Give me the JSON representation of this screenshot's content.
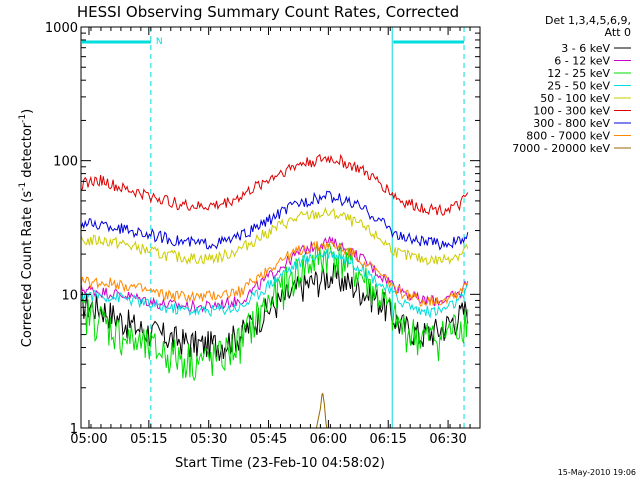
{
  "chart_data": {
    "type": "line",
    "title": "HESSI Observing Summary Count Rates, Corrected",
    "xlabel": "Start Time (23-Feb-10 04:58:02)",
    "ylabel": "Corrected Count Rate (s⁻¹ detector⁻¹)",
    "ylabel_main": "Corrected Count Rate (s",
    "ylabel_sup1": "-1",
    "ylabel_mid": " detector",
    "ylabel_sup2": "-1",
    "ylabel_end": ")",
    "x_axis_units": "minutes since 04:58:02",
    "xlim": [
      0,
      100
    ],
    "ylim": [
      1,
      1000
    ],
    "yscale": "log",
    "x_ticks": [
      {
        "value": 2,
        "label": "05:00"
      },
      {
        "value": 17,
        "label": "05:15"
      },
      {
        "value": 32,
        "label": "05:30"
      },
      {
        "value": 47,
        "label": "05:45"
      },
      {
        "value": 62,
        "label": "06:00"
      },
      {
        "value": 77,
        "label": "06:15"
      },
      {
        "value": 92,
        "label": "06:30"
      }
    ],
    "y_ticks": [
      {
        "value": 1,
        "label": "1"
      },
      {
        "value": 10,
        "label": "10"
      },
      {
        "value": 100,
        "label": "100"
      },
      {
        "value": 1000,
        "label": "1000"
      }
    ],
    "legend": {
      "placement": "right",
      "header_line1": "Det 1,3,4,5,6,9,",
      "header_line2": "Att 0"
    },
    "night_flag_label": "N",
    "night_bars": [
      [
        0,
        17.5
      ],
      [
        78,
        96
      ]
    ],
    "saa_lines": [
      17.5,
      78,
      96
    ],
    "series": [
      {
        "name": "3 - 6 keV",
        "color": "#000000",
        "points": [
          [
            0,
            8.5
          ],
          [
            5,
            8
          ],
          [
            10,
            6.5
          ],
          [
            15,
            5.5
          ],
          [
            20,
            5
          ],
          [
            25,
            4.5
          ],
          [
            30,
            4.2
          ],
          [
            35,
            4.3
          ],
          [
            40,
            5
          ],
          [
            45,
            7
          ],
          [
            50,
            9
          ],
          [
            55,
            11.5
          ],
          [
            60,
            13
          ],
          [
            62,
            14
          ],
          [
            65,
            13
          ],
          [
            70,
            11
          ],
          [
            75,
            9
          ],
          [
            78,
            7
          ],
          [
            80,
            6
          ],
          [
            85,
            5
          ],
          [
            90,
            5.5
          ],
          [
            95,
            7
          ],
          [
            97,
            8
          ]
        ]
      },
      {
        "name": "6 - 12 keV",
        "color": "#cc00cc",
        "points": [
          [
            0,
            11
          ],
          [
            10,
            10
          ],
          [
            20,
            8.5
          ],
          [
            30,
            8
          ],
          [
            40,
            9
          ],
          [
            45,
            12
          ],
          [
            50,
            16
          ],
          [
            55,
            21
          ],
          [
            60,
            24
          ],
          [
            62,
            25
          ],
          [
            65,
            23
          ],
          [
            70,
            19
          ],
          [
            75,
            14
          ],
          [
            80,
            11
          ],
          [
            85,
            9
          ],
          [
            90,
            9
          ],
          [
            95,
            10
          ],
          [
            97,
            13
          ]
        ]
      },
      {
        "name": "12 - 25 keV",
        "color": "#00dd00",
        "points": [
          [
            0,
            7.5
          ],
          [
            5,
            6.5
          ],
          [
            10,
            5
          ],
          [
            15,
            4.2
          ],
          [
            20,
            3.8
          ],
          [
            25,
            3.4
          ],
          [
            30,
            3.2
          ],
          [
            35,
            3.4
          ],
          [
            40,
            4.5
          ],
          [
            45,
            7.5
          ],
          [
            50,
            11
          ],
          [
            55,
            15.5
          ],
          [
            60,
            19
          ],
          [
            62,
            20.5
          ],
          [
            65,
            19
          ],
          [
            70,
            14
          ],
          [
            75,
            9.5
          ],
          [
            78,
            7
          ],
          [
            80,
            5.8
          ],
          [
            85,
            4.8
          ],
          [
            90,
            4.8
          ],
          [
            95,
            6
          ],
          [
            97,
            7
          ]
        ]
      },
      {
        "name": "25 - 50 keV",
        "color": "#00dddd",
        "points": [
          [
            0,
            10
          ],
          [
            10,
            9.5
          ],
          [
            20,
            8
          ],
          [
            30,
            7.5
          ],
          [
            40,
            8
          ],
          [
            45,
            10.5
          ],
          [
            50,
            14
          ],
          [
            55,
            17.5
          ],
          [
            60,
            20
          ],
          [
            62,
            20.5
          ],
          [
            65,
            19.5
          ],
          [
            70,
            16
          ],
          [
            75,
            12
          ],
          [
            80,
            9
          ],
          [
            85,
            7.5
          ],
          [
            90,
            7.5
          ],
          [
            95,
            9
          ],
          [
            97,
            11
          ]
        ]
      },
      {
        "name": "50 - 100 keV",
        "color": "#cccc00",
        "points": [
          [
            0,
            25
          ],
          [
            5,
            25.5
          ],
          [
            10,
            24
          ],
          [
            15,
            22
          ],
          [
            20,
            20
          ],
          [
            25,
            19
          ],
          [
            30,
            18.5
          ],
          [
            35,
            19
          ],
          [
            40,
            22
          ],
          [
            45,
            27
          ],
          [
            50,
            33
          ],
          [
            55,
            38
          ],
          [
            60,
            40
          ],
          [
            62,
            40.5
          ],
          [
            65,
            39
          ],
          [
            70,
            33
          ],
          [
            75,
            26
          ],
          [
            78,
            22
          ],
          [
            80,
            20
          ],
          [
            85,
            18.5
          ],
          [
            90,
            18
          ],
          [
            95,
            20
          ],
          [
            97,
            23
          ]
        ]
      },
      {
        "name": "100 - 300 keV",
        "color": "#dd0000",
        "points": [
          [
            0,
            67
          ],
          [
            5,
            72
          ],
          [
            10,
            62
          ],
          [
            15,
            57
          ],
          [
            20,
            52
          ],
          [
            25,
            47
          ],
          [
            30,
            45
          ],
          [
            35,
            47
          ],
          [
            40,
            54
          ],
          [
            45,
            67
          ],
          [
            50,
            82
          ],
          [
            55,
            95
          ],
          [
            60,
            102
          ],
          [
            62,
            104
          ],
          [
            65,
            100
          ],
          [
            70,
            86
          ],
          [
            75,
            68
          ],
          [
            78,
            57
          ],
          [
            80,
            50
          ],
          [
            85,
            45
          ],
          [
            90,
            43
          ],
          [
            95,
            46
          ],
          [
            97,
            57
          ]
        ]
      },
      {
        "name": "300 - 800 keV",
        "color": "#0000dd",
        "points": [
          [
            0,
            34
          ],
          [
            5,
            33
          ],
          [
            10,
            31
          ],
          [
            15,
            29
          ],
          [
            20,
            27
          ],
          [
            25,
            25
          ],
          [
            30,
            24
          ],
          [
            35,
            24.5
          ],
          [
            40,
            27
          ],
          [
            45,
            33
          ],
          [
            50,
            41
          ],
          [
            55,
            49
          ],
          [
            60,
            53
          ],
          [
            62,
            54
          ],
          [
            65,
            52
          ],
          [
            70,
            45
          ],
          [
            75,
            36
          ],
          [
            78,
            30
          ],
          [
            80,
            27
          ],
          [
            85,
            25
          ],
          [
            90,
            24
          ],
          [
            95,
            25
          ],
          [
            97,
            27
          ]
        ]
      },
      {
        "name": "800 - 7000 keV",
        "color": "#ff8800",
        "points": [
          [
            0,
            12.5
          ],
          [
            10,
            12
          ],
          [
            20,
            10
          ],
          [
            30,
            9.5
          ],
          [
            40,
            10.5
          ],
          [
            45,
            14
          ],
          [
            50,
            18
          ],
          [
            55,
            21.5
          ],
          [
            60,
            23
          ],
          [
            62,
            23.5
          ],
          [
            65,
            22.5
          ],
          [
            70,
            18.5
          ],
          [
            75,
            14
          ],
          [
            80,
            10.5
          ],
          [
            85,
            9
          ],
          [
            90,
            9
          ],
          [
            95,
            10.5
          ],
          [
            97,
            13
          ]
        ]
      },
      {
        "name": "7000 - 20000 keV",
        "color": "#996600",
        "points": [
          [
            57,
            1
          ],
          [
            59,
            1
          ],
          [
            60,
            1.4
          ],
          [
            60.5,
            1.9
          ],
          [
            61,
            1.5
          ],
          [
            61.5,
            1
          ],
          [
            63,
            1
          ],
          [
            65,
            1
          ]
        ]
      }
    ]
  },
  "footer": {
    "date_stamp": "15-May-2010 19:06"
  }
}
